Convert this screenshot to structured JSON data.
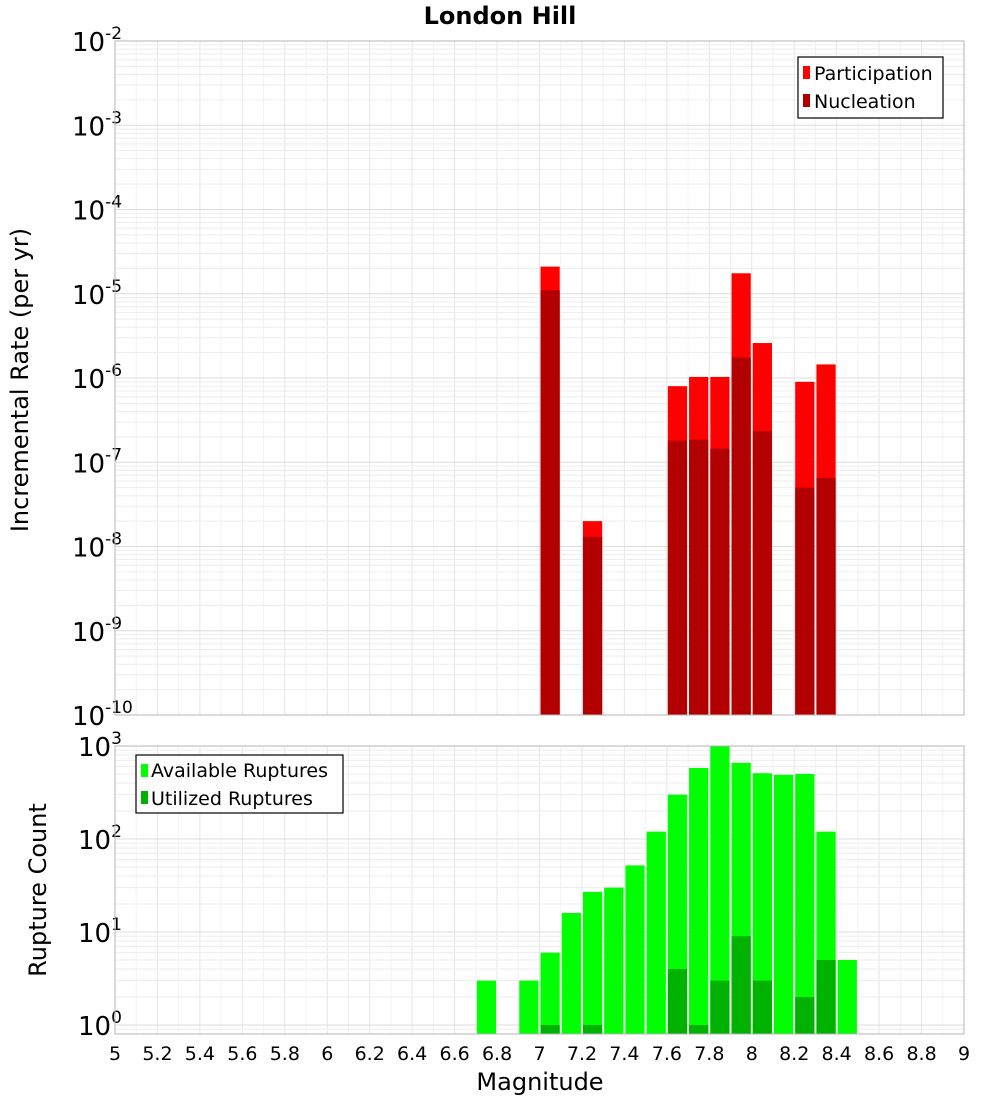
{
  "chart_data": [
    {
      "type": "bar",
      "title": "London Hill",
      "xlabel": "",
      "ylabel": "Incremental Rate (per yr)",
      "yscale": "log",
      "ylim": [
        1e-10,
        0.01
      ],
      "xlim": [
        5,
        9
      ],
      "grid": true,
      "legend_position": "top-right",
      "series": [
        {
          "name": "Participation",
          "color": "#ff0000",
          "x": [
            7.05,
            7.25,
            7.65,
            7.75,
            7.85,
            7.95,
            8.05,
            8.25,
            8.35
          ],
          "values": [
            2.1e-05,
            2e-08,
            8e-07,
            1.03e-06,
            1.03e-06,
            1.75e-05,
            2.6e-06,
            9e-07,
            1.45e-06
          ]
        },
        {
          "name": "Nucleation",
          "color": "#b20000",
          "x": [
            7.05,
            7.25,
            7.65,
            7.75,
            7.85,
            7.95,
            8.05,
            8.25,
            8.35
          ],
          "values": [
            1.1e-05,
            1.3e-08,
            1.8e-07,
            1.85e-07,
            1.45e-07,
            1.75e-06,
            2.35e-07,
            5e-08,
            6.5e-08
          ]
        }
      ]
    },
    {
      "type": "bar",
      "title": "",
      "xlabel": "Magnitude",
      "ylabel": "Rupture Count",
      "yscale": "log",
      "ylim": [
        0.8,
        1000
      ],
      "xlim": [
        5,
        9
      ],
      "grid": true,
      "legend_position": "top-left",
      "x_ticks": [
        "5",
        "5.2",
        "5.4",
        "5.6",
        "5.8",
        "6",
        "6.2",
        "6.4",
        "6.6",
        "6.8",
        "7",
        "7.2",
        "7.4",
        "7.6",
        "7.8",
        "8",
        "8.2",
        "8.4",
        "8.6",
        "8.8",
        "9"
      ],
      "series": [
        {
          "name": "Available Ruptures",
          "color": "#00ff00",
          "x": [
            6.75,
            6.95,
            7.05,
            7.15,
            7.25,
            7.35,
            7.45,
            7.55,
            7.65,
            7.75,
            7.85,
            7.95,
            8.05,
            8.15,
            8.25,
            8.35,
            8.45
          ],
          "values": [
            3,
            3,
            6,
            16,
            27,
            30,
            52,
            120,
            300,
            580,
            1000,
            660,
            510,
            490,
            500,
            120,
            5
          ]
        },
        {
          "name": "Utilized Ruptures",
          "color": "#00b200",
          "x": [
            7.05,
            7.25,
            7.65,
            7.75,
            7.85,
            7.95,
            8.05,
            8.25,
            8.35
          ],
          "values": [
            1,
            1,
            4,
            1,
            3,
            9,
            3,
            2,
            5
          ]
        }
      ]
    }
  ]
}
